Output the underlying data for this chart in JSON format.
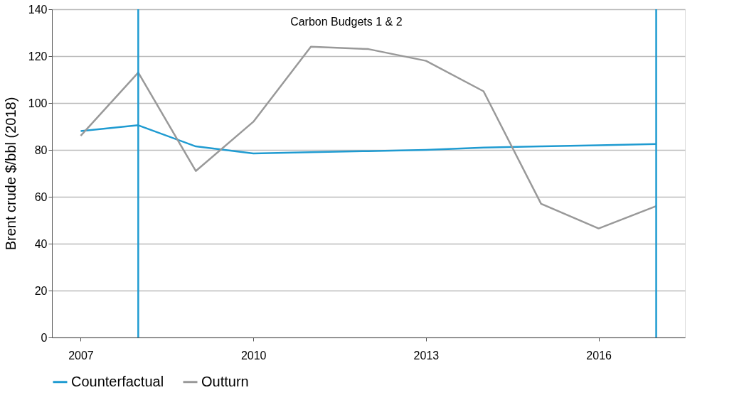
{
  "chart_data": {
    "type": "line",
    "ylabel": "Brent crude $/bbl (2018)",
    "x": [
      2007,
      2008,
      2009,
      2010,
      2011,
      2012,
      2013,
      2014,
      2015,
      2016,
      2017
    ],
    "series": [
      {
        "name": "Counterfactual",
        "color": "#1f9bd1",
        "values": [
          88,
          90.5,
          81.5,
          78.5,
          79,
          79.5,
          80,
          81,
          81.5,
          82,
          82.5
        ]
      },
      {
        "name": "Outturn",
        "color": "#999999",
        "values": [
          86,
          113,
          71,
          92,
          124,
          123,
          118,
          105,
          57,
          46.5,
          56
        ]
      }
    ],
    "xlim": [
      2006.5,
      2017.5
    ],
    "xticks": [
      2007,
      2010,
      2013,
      2016
    ],
    "ylim": [
      0,
      140
    ],
    "yticks": [
      0,
      20,
      40,
      60,
      80,
      100,
      120,
      140
    ],
    "ref_lines": [
      {
        "axis": "x",
        "value": 2008,
        "color": "#1f9bd1"
      },
      {
        "axis": "x",
        "value": 2017,
        "color": "#1f9bd1"
      }
    ],
    "annotations": [
      "Carbon Budgets 1 & 2"
    ],
    "grid": "y",
    "legend": "bottom",
    "marker": "none",
    "line_style": "solid"
  }
}
